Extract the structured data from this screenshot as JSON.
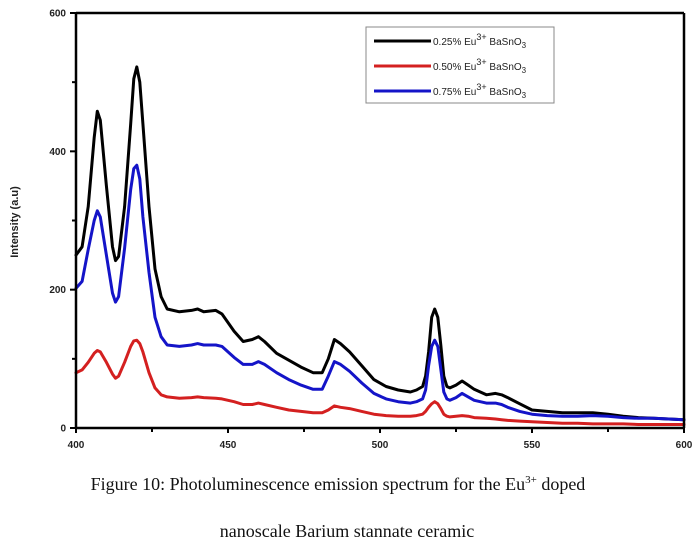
{
  "chart_data": {
    "type": "line",
    "title": "",
    "xlabel": "",
    "ylabel": "Intensity (a.u)",
    "xlim": [
      400,
      600
    ],
    "ylim": [
      0,
      600
    ],
    "x_ticks": [
      400,
      450,
      500,
      550,
      600
    ],
    "y_ticks": [
      0,
      200,
      400,
      600
    ],
    "legend_position": "top-right",
    "series": [
      {
        "name": "0.25% Eu3+ BaSnO3",
        "label_main": "0.25% Eu",
        "label_sup": "3+",
        "label_tail": " BaSnO",
        "label_sub": "3",
        "color": "#000000",
        "x": [
          400,
          402,
          404,
          406,
          407,
          408,
          410,
          412,
          413,
          414,
          416,
          418,
          419,
          420,
          421,
          422,
          424,
          426,
          428,
          430,
          434,
          438,
          440,
          442,
          446,
          448,
          452,
          455,
          458,
          460,
          462,
          466,
          470,
          474,
          478,
          481,
          483,
          485,
          487,
          490,
          494,
          498,
          502,
          506,
          510,
          512,
          514,
          515,
          516,
          517,
          518,
          519,
          520,
          521,
          522,
          523,
          525,
          527,
          529,
          531,
          535,
          538,
          540,
          542,
          546,
          550,
          555,
          560,
          565,
          570,
          575,
          580,
          585,
          590,
          595,
          600
        ],
        "y": [
          250,
          262,
          320,
          420,
          458,
          445,
          350,
          262,
          242,
          248,
          320,
          440,
          505,
          522,
          500,
          440,
          320,
          230,
          190,
          172,
          168,
          170,
          172,
          168,
          170,
          165,
          140,
          125,
          128,
          132,
          125,
          108,
          98,
          88,
          80,
          80,
          100,
          128,
          122,
          110,
          90,
          70,
          60,
          55,
          52,
          55,
          60,
          75,
          110,
          160,
          172,
          160,
          120,
          75,
          60,
          58,
          62,
          68,
          62,
          56,
          48,
          50,
          48,
          44,
          35,
          26,
          24,
          22,
          22,
          22,
          20,
          17,
          15,
          14,
          13,
          12
        ]
      },
      {
        "name": "0.50% Eu3+ BaSnO3",
        "label_main": "0.50% Eu",
        "label_sup": "3+",
        "label_tail": " BaSnO",
        "label_sub": "3",
        "color": "#d42020",
        "x": [
          400,
          402,
          404,
          406,
          407,
          408,
          410,
          412,
          413,
          414,
          416,
          418,
          419,
          420,
          421,
          422,
          424,
          426,
          428,
          430,
          434,
          438,
          440,
          442,
          446,
          448,
          452,
          455,
          458,
          460,
          462,
          466,
          470,
          474,
          478,
          481,
          483,
          485,
          487,
          490,
          494,
          498,
          502,
          506,
          510,
          512,
          514,
          515,
          516,
          517,
          518,
          519,
          520,
          521,
          522,
          523,
          525,
          527,
          529,
          531,
          535,
          538,
          540,
          542,
          546,
          550,
          555,
          560,
          565,
          570,
          575,
          580,
          585,
          590,
          595,
          600
        ],
        "y": [
          80,
          84,
          95,
          108,
          112,
          110,
          95,
          78,
          72,
          75,
          95,
          118,
          126,
          127,
          122,
          110,
          80,
          58,
          48,
          45,
          43,
          44,
          45,
          44,
          43,
          42,
          38,
          34,
          34,
          36,
          34,
          30,
          26,
          24,
          22,
          22,
          26,
          32,
          30,
          28,
          24,
          20,
          18,
          17,
          17,
          18,
          20,
          24,
          30,
          35,
          38,
          35,
          28,
          20,
          17,
          16,
          17,
          18,
          17,
          15,
          14,
          13,
          12,
          11,
          10,
          9,
          8,
          7,
          7,
          6,
          6,
          6,
          5,
          5,
          5,
          5
        ]
      },
      {
        "name": "0.75% Eu3+ BaSnO3",
        "label_main": "0.75% Eu",
        "label_sup": "3+",
        "label_tail": " BaSnO",
        "label_sub": "3",
        "color": "#1414c8",
        "x": [
          400,
          402,
          404,
          406,
          407,
          408,
          410,
          412,
          413,
          414,
          416,
          418,
          419,
          420,
          421,
          422,
          424,
          426,
          428,
          430,
          434,
          438,
          440,
          442,
          446,
          448,
          452,
          455,
          458,
          460,
          462,
          466,
          470,
          474,
          478,
          481,
          483,
          485,
          487,
          490,
          494,
          498,
          502,
          506,
          510,
          512,
          514,
          515,
          516,
          517,
          518,
          519,
          520,
          521,
          522,
          523,
          525,
          527,
          529,
          531,
          535,
          538,
          540,
          542,
          546,
          550,
          555,
          560,
          565,
          570,
          575,
          580,
          585,
          590,
          595,
          600
        ],
        "y": [
          202,
          212,
          258,
          300,
          314,
          305,
          250,
          195,
          182,
          190,
          260,
          345,
          375,
          380,
          360,
          305,
          225,
          160,
          132,
          120,
          118,
          120,
          122,
          120,
          120,
          118,
          102,
          92,
          92,
          96,
          92,
          80,
          70,
          62,
          56,
          56,
          75,
          96,
          92,
          82,
          65,
          50,
          42,
          38,
          36,
          38,
          42,
          55,
          90,
          118,
          127,
          118,
          85,
          52,
          42,
          40,
          44,
          50,
          45,
          40,
          36,
          36,
          34,
          30,
          24,
          20,
          18,
          17,
          17,
          18,
          17,
          15,
          14,
          14,
          13,
          12
        ]
      }
    ]
  },
  "caption": {
    "line1_before": "Figure 10: Photoluminescence emission spectrum for the Eu",
    "line1_sup": "3+",
    "line1_after": " doped",
    "line2": "nanoscale Barium stannate ceramic"
  }
}
